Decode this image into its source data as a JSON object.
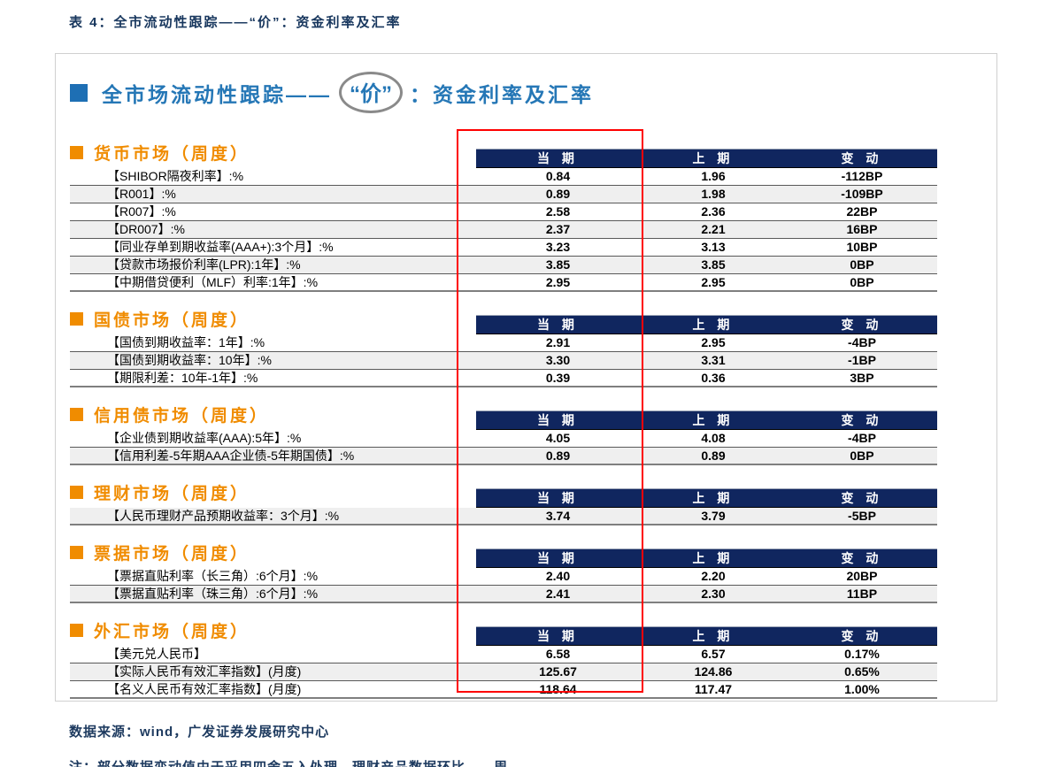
{
  "caption": "表 4：全市流动性跟踪——“价”：资金利率及汇率",
  "header": {
    "title_left": "全市场流动性跟踪——",
    "circled_word": "“价”",
    "title_right": "：资金利率及汇率"
  },
  "columns": [
    "当 期",
    "上 期",
    "变 动"
  ],
  "sections": [
    {
      "title": "货币市场（周度）",
      "rows": [
        {
          "label": "【SHIBOR隔夜利率】:%",
          "current": "0.84",
          "previous": "1.96",
          "change": "-112BP"
        },
        {
          "label": "【R001】:%",
          "current": "0.89",
          "previous": "1.98",
          "change": "-109BP"
        },
        {
          "label": "【R007】:%",
          "current": "2.58",
          "previous": "2.36",
          "change": "22BP"
        },
        {
          "label": "【DR007】:%",
          "current": "2.37",
          "previous": "2.21",
          "change": "16BP"
        },
        {
          "label": "【同业存单到期收益率(AAA+):3个月】:%",
          "current": "3.23",
          "previous": "3.13",
          "change": "10BP"
        },
        {
          "label": "【贷款市场报价利率(LPR):1年】:%",
          "current": "3.85",
          "previous": "3.85",
          "change": "0BP"
        },
        {
          "label": "【中期借贷便利（MLF）利率:1年】:%",
          "current": "2.95",
          "previous": "2.95",
          "change": "0BP"
        }
      ]
    },
    {
      "title": "国债市场（周度）",
      "rows": [
        {
          "label": "【国债到期收益率：1年】:%",
          "current": "2.91",
          "previous": "2.95",
          "change": "-4BP"
        },
        {
          "label": "【国债到期收益率：10年】:%",
          "current": "3.30",
          "previous": "3.31",
          "change": "-1BP"
        },
        {
          "label": "【期限利差：10年-1年】:%",
          "current": "0.39",
          "previous": "0.36",
          "change": "3BP"
        }
      ]
    },
    {
      "title": "信用债市场（周度）",
      "rows": [
        {
          "label": "【企业债到期收益率(AAA):5年】:%",
          "current": "4.05",
          "previous": "4.08",
          "change": "-4BP"
        },
        {
          "label": "【信用利差-5年期AAA企业债-5年期国债】:%",
          "current": "0.89",
          "previous": "0.89",
          "change": "0BP"
        }
      ]
    },
    {
      "title": "理财市场（周度）",
      "rows": [
        {
          "label": "【人民币理财产品预期收益率：3个月】:%",
          "current": "3.74",
          "previous": "3.79",
          "change": "-5BP"
        }
      ]
    },
    {
      "title": "票据市场（周度）",
      "rows": [
        {
          "label": "【票据直贴利率（长三角）:6个月】:%",
          "current": "2.40",
          "previous": "2.20",
          "change": "20BP"
        },
        {
          "label": "【票据直贴利率（珠三角）:6个月】:%",
          "current": "2.41",
          "previous": "2.30",
          "change": "11BP"
        }
      ]
    },
    {
      "title": "外汇市场（周度）",
      "rows": [
        {
          "label": "【美元兑人民币】",
          "current": "6.58",
          "previous": "6.57",
          "change": "0.17%"
        },
        {
          "label": "【实际人民币有效汇率指数】(月度)",
          "current": "125.67",
          "previous": "124.86",
          "change": "0.65%"
        },
        {
          "label": "【名义人民币有效汇率指数】(月度)",
          "current": "118.64",
          "previous": "117.47",
          "change": "1.00%"
        }
      ]
    }
  ],
  "footer": {
    "source": "数据来源：wind，广发证券发展研究中心",
    "note_partial": "注：部分数据变动值由于采用四舍五入处理，理财产品数据环比——周"
  },
  "colors": {
    "navy_bar": "#10265f",
    "caption_navy": "#17365d",
    "header_blue": "#2577b6",
    "section_orange": "#f08c00",
    "highlight_red": "#fe0000",
    "row_shade": "#efefef"
  }
}
